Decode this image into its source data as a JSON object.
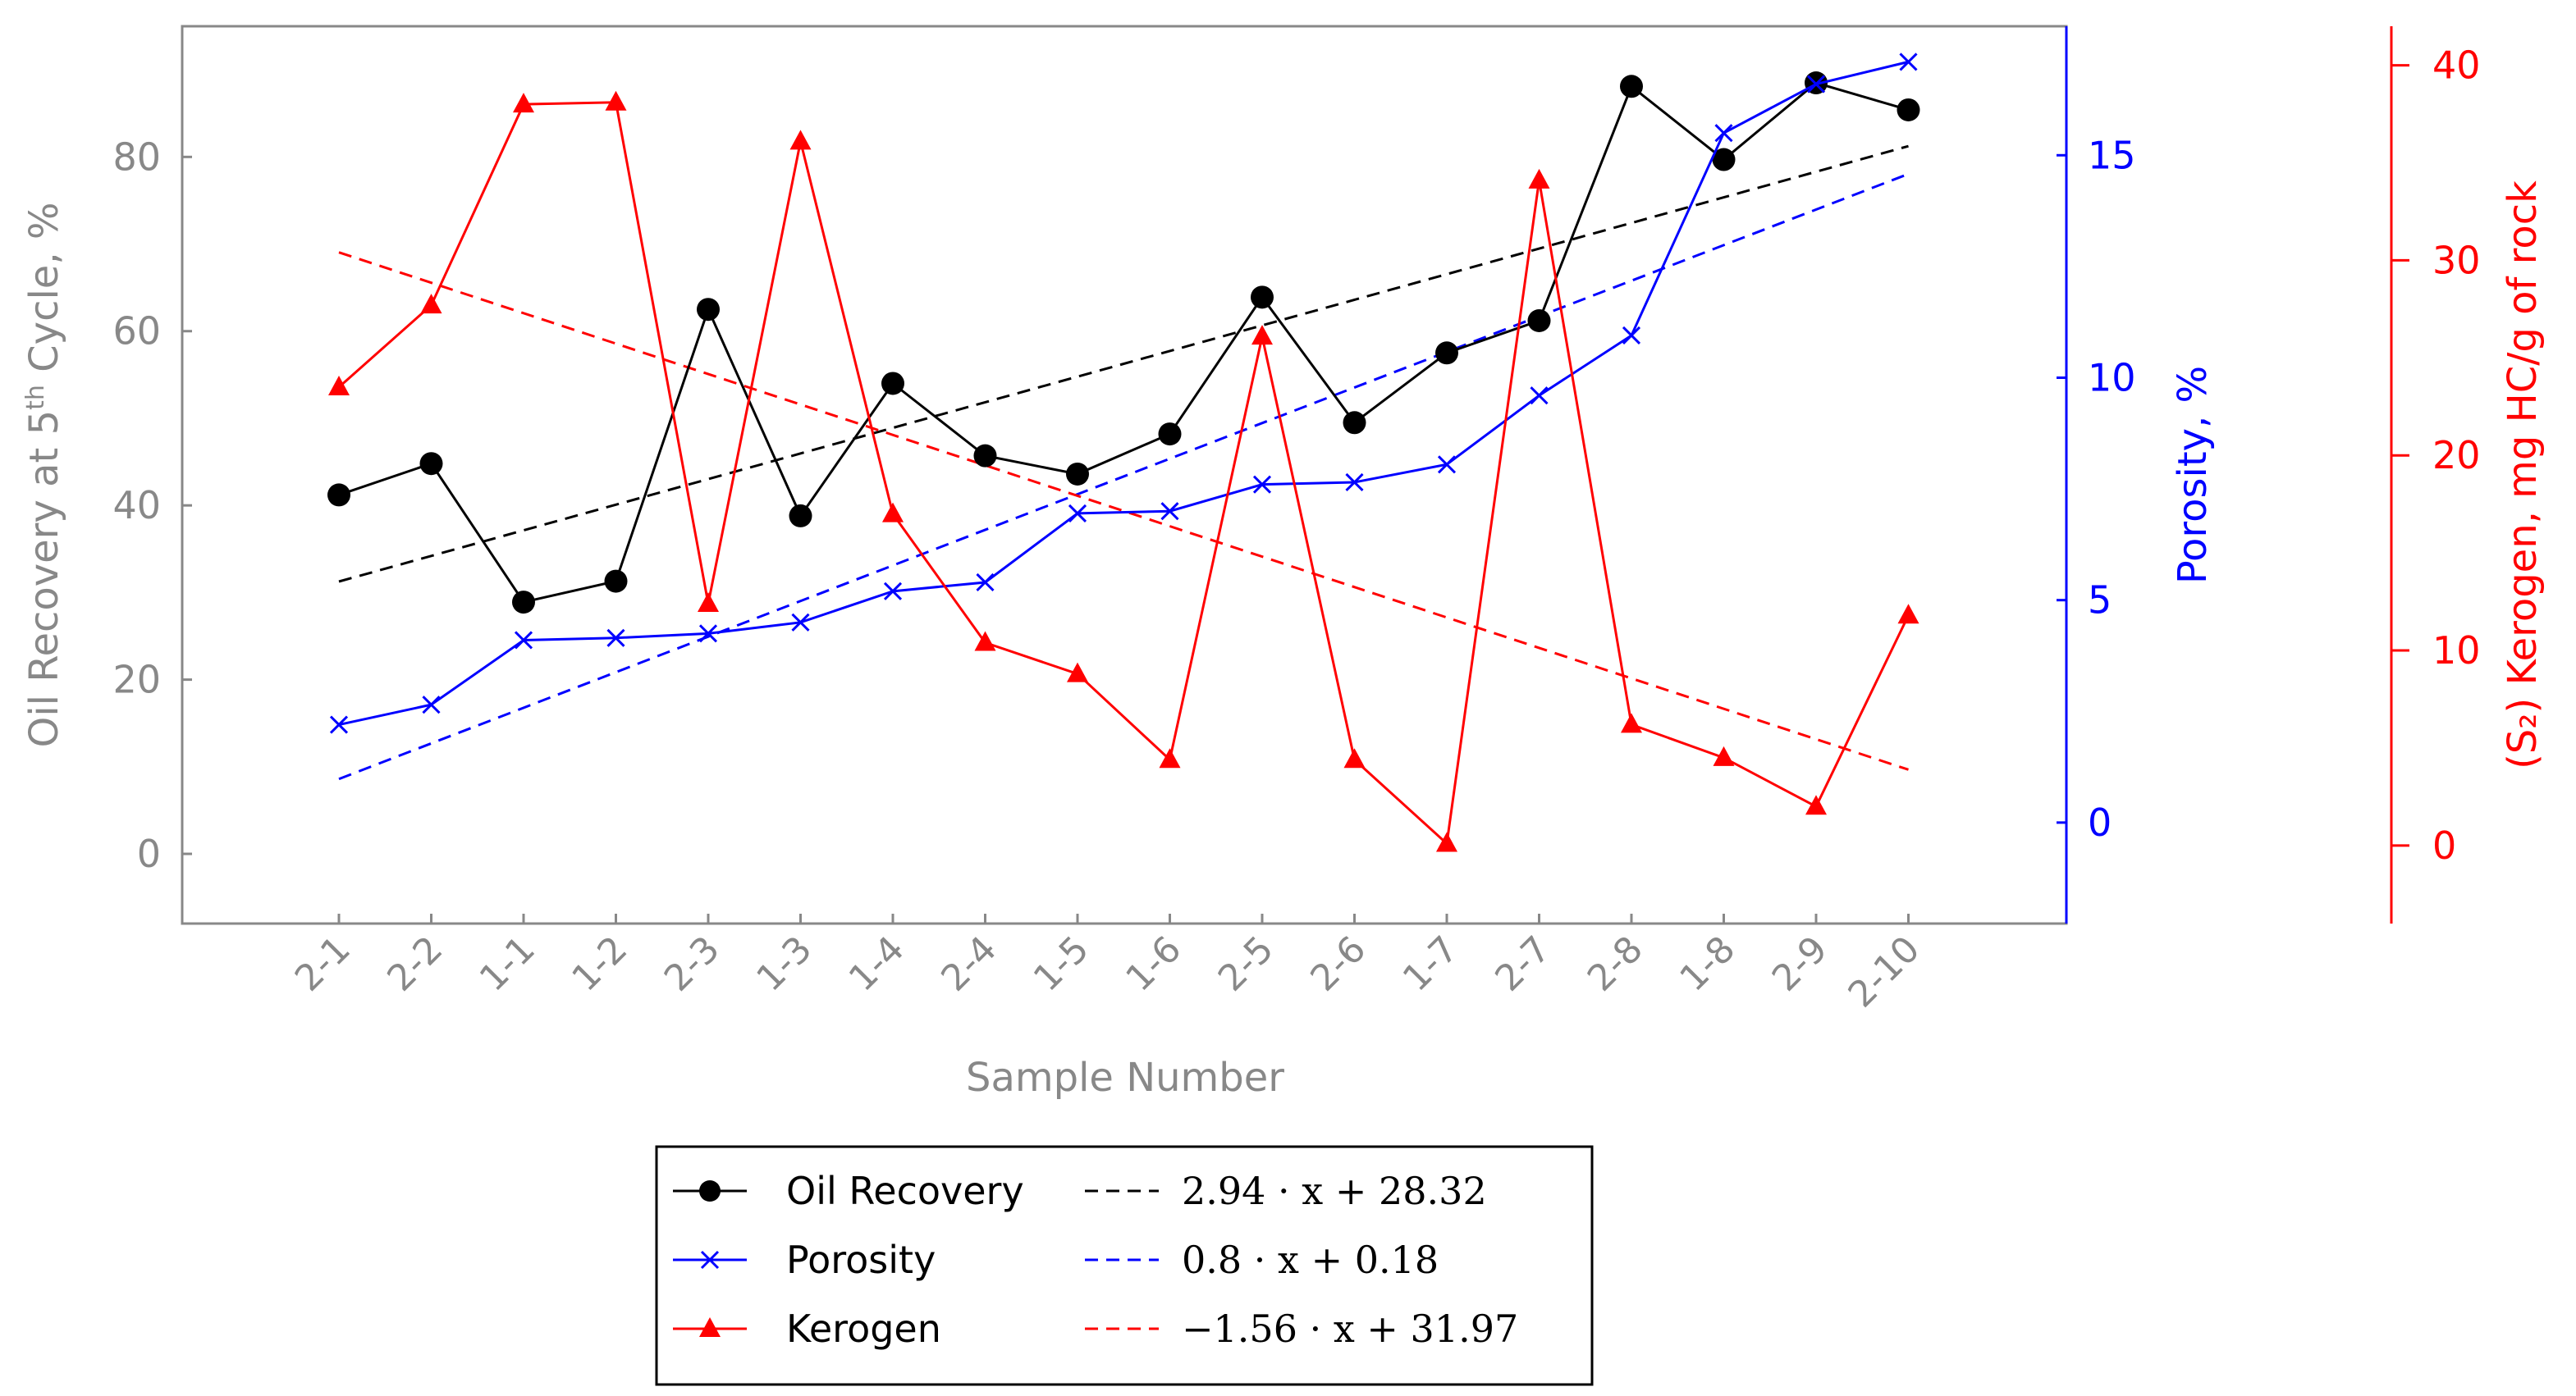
{
  "chart_data": {
    "type": "line",
    "xlabel": "Sample Number",
    "categories": [
      "2-1",
      "2-2",
      "1-1",
      "1-2",
      "2-3",
      "1-3",
      "1-4",
      "2-4",
      "1-5",
      "1-6",
      "2-5",
      "2-6",
      "1-7",
      "2-7",
      "2-8",
      "1-8",
      "2-9",
      "2-10"
    ],
    "axes": {
      "left": {
        "label_main": "Oil Recovery at 5",
        "label_sup": "th",
        "label_tail": " Cycle, %",
        "ylim": [
          -8,
          95
        ],
        "ticks": [
          0,
          20,
          40,
          60,
          80
        ],
        "color": "#888888"
      },
      "right1": {
        "label": "Porosity, %",
        "ylim": [
          -2.27,
          17.9
        ],
        "ticks": [
          0,
          5,
          10,
          15
        ],
        "color": "#0000ff"
      },
      "right2": {
        "label": "(S₂) Kerogen, mg HC/g of rock",
        "ylim": [
          -4,
          42
        ],
        "ticks": [
          0,
          10,
          20,
          30,
          40
        ],
        "color": "#ff0000"
      }
    },
    "series": [
      {
        "name": "Oil Recovery",
        "axis": "left",
        "color": "#000000",
        "marker": "circle",
        "values": [
          41.2,
          44.8,
          28.9,
          31.3,
          62.5,
          38.8,
          54.0,
          45.7,
          43.6,
          48.2,
          63.9,
          49.5,
          57.5,
          61.2,
          88.1,
          79.7,
          88.5,
          85.4
        ]
      },
      {
        "name": "Porosity",
        "axis": "right1",
        "color": "#0000ff",
        "marker": "x",
        "values": [
          2.2,
          2.65,
          4.1,
          4.15,
          4.25,
          4.5,
          5.2,
          5.4,
          6.95,
          7.0,
          7.6,
          7.65,
          8.05,
          9.6,
          10.95,
          15.5,
          16.6,
          17.1
        ]
      },
      {
        "name": "Kerogen",
        "axis": "right2",
        "color": "#ff0000",
        "marker": "triangle",
        "values": [
          23.5,
          27.7,
          38.0,
          38.1,
          12.4,
          36.1,
          17.0,
          10.4,
          8.8,
          4.4,
          26.1,
          4.4,
          0.1,
          34.1,
          6.2,
          4.5,
          2.0,
          11.8
        ]
      }
    ],
    "trendlines": [
      {
        "name": "2.94 · x + 28.32",
        "axis": "left",
        "color": "#000000",
        "slope": 2.94,
        "intercept": 28.32
      },
      {
        "name": "0.8 · x + 0.18",
        "axis": "right1",
        "color": "#0000ff",
        "slope": 0.8,
        "intercept": 0.18
      },
      {
        "name": "−1.56 · x + 31.97",
        "axis": "right2",
        "color": "#ff0000",
        "slope": -1.56,
        "intercept": 31.97
      }
    ],
    "legend_position": "bottom-center"
  }
}
